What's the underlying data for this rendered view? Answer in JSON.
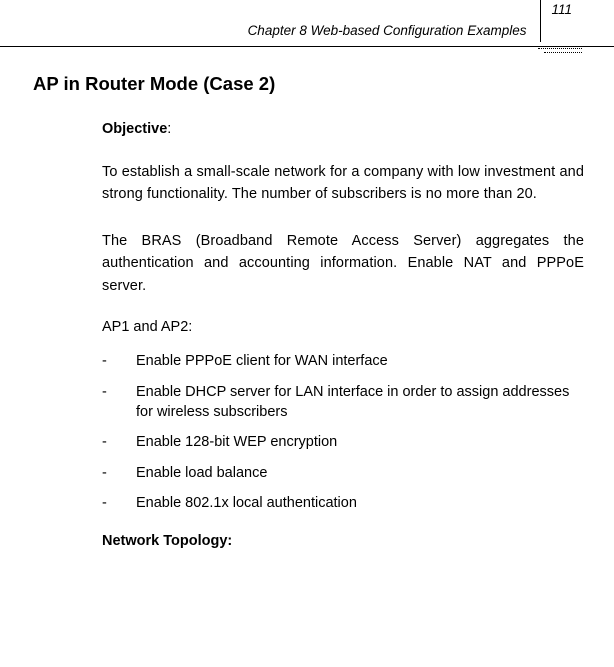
{
  "header": {
    "chapter_label": "Chapter 8 Web-based Configuration Examples",
    "page_number": "111"
  },
  "section_title": "AP in Router Mode (Case 2)",
  "objective": {
    "label": "Objective",
    "colon": ":"
  },
  "paragraphs": {
    "p1": "To establish a small-scale network for a company with low investment and strong functionality. The number of subscribers is no more than 20.",
    "p2": "The BRAS (Broadband Remote Access Server) aggregates the authentication and accounting information. Enable NAT and PPPoE server."
  },
  "subhead": "AP1 and AP2:",
  "bullets": [
    "Enable PPPoE client for WAN interface",
    "Enable DHCP server for LAN interface in order to assign addresses for wireless subscribers",
    "Enable 128-bit WEP encryption",
    "Enable load balance",
    "Enable 802.1x local authentication"
  ],
  "topology_label": "Network Topology:"
}
